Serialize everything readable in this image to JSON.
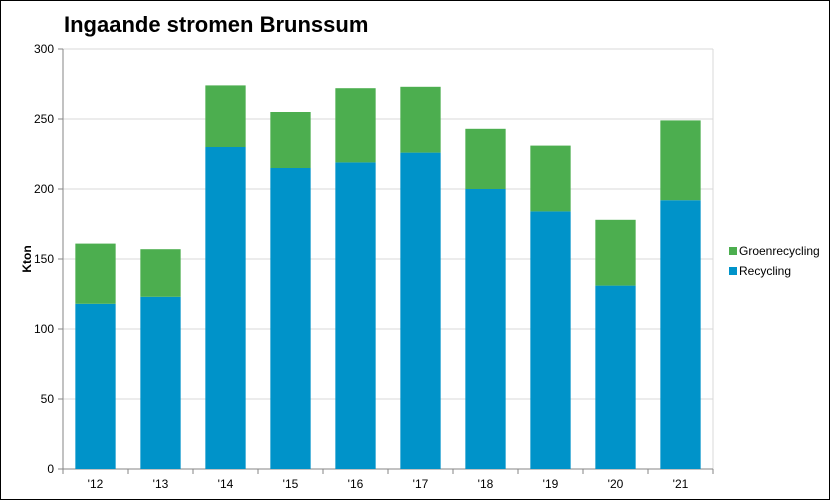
{
  "chart_data": {
    "type": "bar",
    "stacked": true,
    "title": "Ingaande stromen Brunssum",
    "xlabel": "",
    "ylabel": "Kton",
    "ylim": [
      0,
      300
    ],
    "yticks": [
      0,
      50,
      100,
      150,
      200,
      250,
      300
    ],
    "grid": true,
    "legend_position": "right",
    "categories": [
      "'12",
      "'13",
      "'14",
      "'15",
      "'16",
      "'17",
      "'18",
      "'19",
      "'20",
      "'21"
    ],
    "series": [
      {
        "name": "Recycling",
        "color": "#0093C9",
        "values": [
          118,
          123,
          230,
          215,
          219,
          226,
          200,
          184,
          131,
          192
        ]
      },
      {
        "name": "Groenrecycling",
        "color": "#4CAE4F",
        "values": [
          43,
          34,
          44,
          40,
          53,
          47,
          43,
          47,
          47,
          57
        ]
      }
    ],
    "legend_order": [
      "Groenrecycling",
      "Recycling"
    ]
  }
}
